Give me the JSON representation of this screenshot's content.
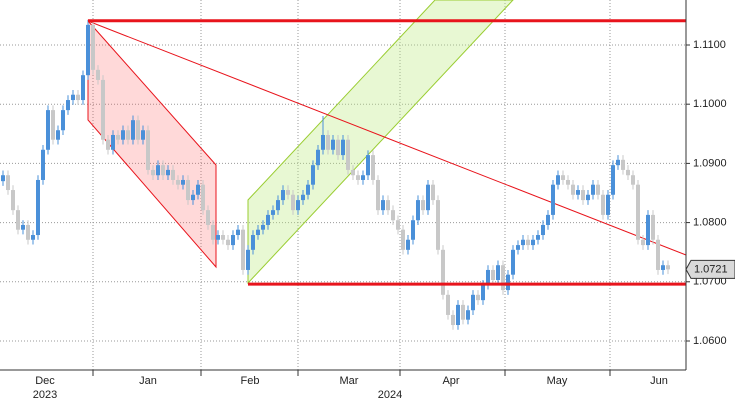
{
  "chart_data": {
    "type": "candlestick",
    "ylim": [
      1.0551,
      1.1176
    ],
    "yticks": [
      {
        "value": 1.06,
        "label": "1.0600"
      },
      {
        "value": 1.07,
        "label": "1.0700"
      },
      {
        "value": 1.08,
        "label": "1.0800"
      },
      {
        "value": 1.09,
        "label": "1.0900"
      },
      {
        "value": 1.1,
        "label": "1.1000"
      },
      {
        "value": 1.11,
        "label": "1.1100"
      }
    ],
    "x_tick_labels": [
      "Dec",
      "Jan",
      "Feb",
      "Mar",
      "Apr",
      "May",
      "Jun"
    ],
    "year_labels": [
      "2023",
      "2024"
    ],
    "grid": true,
    "up_color": "#4a90d9",
    "down_color": "#c8c8c8",
    "horizontal_levels": [
      1.1141,
      1.0696
    ],
    "level_color": "#e8141c",
    "last_price": 1.0721,
    "open": [
      1.087,
      1.088,
      1.0855,
      1.0821,
      1.0788,
      1.0796,
      1.0771,
      1.0779,
      1.0872,
      1.0923,
      1.099,
      1.094,
      1.0956,
      1.099,
      1.1007,
      1.1016,
      1.1007,
      1.1049,
      1.1134,
      1.1058,
      1.1041,
      1.094,
      1.0923,
      1.0948,
      1.094,
      1.0956,
      1.094,
      1.0973,
      1.094,
      1.0956,
      1.0889,
      1.088,
      1.0897,
      1.088,
      1.0889,
      1.0872,
      1.0864,
      1.0872,
      1.0838,
      1.0847,
      1.0864,
      1.0821,
      1.0796,
      1.0771,
      1.0779,
      1.0771,
      1.0762,
      1.0779,
      1.0788,
      1.072,
      1.0754,
      1.0779,
      1.0788,
      1.0796,
      1.0813,
      1.0821,
      1.0838,
      1.0855,
      1.0847,
      1.0821,
      1.0838,
      1.0847,
      1.0864,
      1.0897,
      1.0923,
      1.0948,
      1.0923,
      1.094,
      1.0914,
      1.094,
      1.0889,
      1.088,
      1.0872,
      1.088,
      1.0914,
      1.0872,
      1.0821,
      1.0838,
      1.0821,
      1.0804,
      1.0788,
      1.0754,
      1.0771,
      1.0804,
      1.0838,
      1.0821,
      1.0864,
      1.0838,
      1.0754,
      1.0678,
      1.0644,
      1.0627,
      1.0661,
      1.0636,
      1.0652,
      1.0678,
      1.0669,
      1.0695,
      1.072,
      1.0703,
      1.0728,
      1.0686,
      1.0712,
      1.0754,
      1.0762,
      1.0771,
      1.0762,
      1.0771,
      1.0779,
      1.0796,
      1.0813,
      1.0864,
      1.088,
      1.0872,
      1.0864,
      1.0847,
      1.0855,
      1.0838,
      1.0847,
      1.0864,
      1.0847,
      1.0813,
      1.0847,
      1.0897,
      1.0906,
      1.0889,
      1.088,
      1.0864,
      1.0771,
      1.0762,
      1.0813,
      1.0771,
      1.072,
      1.0728
    ],
    "high": [
      1.0888,
      1.0888,
      1.0863,
      1.0829,
      1.0804,
      1.0804,
      1.0787,
      1.088,
      1.0931,
      1.0998,
      1.0998,
      1.0964,
      1.0998,
      1.1015,
      1.1024,
      1.1024,
      1.1057,
      1.1142,
      1.1142,
      1.1066,
      1.1049,
      1.0948,
      1.0956,
      1.0956,
      1.0964,
      1.0964,
      1.0981,
      1.0981,
      1.0964,
      1.0964,
      1.0897,
      1.0905,
      1.0905,
      1.0897,
      1.0897,
      1.088,
      1.088,
      1.088,
      1.0855,
      1.0872,
      1.0872,
      1.0829,
      1.0804,
      1.0787,
      1.0787,
      1.0779,
      1.0787,
      1.0796,
      1.0796,
      1.0762,
      1.0787,
      1.0796,
      1.0804,
      1.0821,
      1.0829,
      1.0846,
      1.0863,
      1.0863,
      1.0855,
      1.0846,
      1.0855,
      1.0872,
      1.0905,
      1.0931,
      1.098,
      1.0956,
      1.0948,
      1.0948,
      1.0948,
      1.0948,
      1.0897,
      1.0888,
      1.0888,
      1.0922,
      1.0922,
      1.088,
      1.0846,
      1.0846,
      1.0829,
      1.0812,
      1.0796,
      1.0779,
      1.0812,
      1.0846,
      1.0846,
      1.0872,
      1.0872,
      1.0846,
      1.0762,
      1.0686,
      1.0652,
      1.0669,
      1.0669,
      1.066,
      1.0686,
      1.0686,
      1.0703,
      1.0728,
      1.0728,
      1.0736,
      1.0736,
      1.072,
      1.0762,
      1.077,
      1.0779,
      1.0779,
      1.0779,
      1.0787,
      1.0804,
      1.0821,
      1.0872,
      1.0888,
      1.0888,
      1.088,
      1.0872,
      1.0863,
      1.0863,
      1.0855,
      1.0872,
      1.0872,
      1.0855,
      1.0855,
      1.0905,
      1.0914,
      1.0914,
      1.0897,
      1.0888,
      1.0872,
      1.0779,
      1.0821,
      1.0821,
      1.0779,
      1.0736,
      1.0736
    ],
    "low": [
      1.0862,
      1.0847,
      1.0813,
      1.078,
      1.078,
      1.0763,
      1.0763,
      1.0771,
      1.0864,
      1.0915,
      1.0932,
      1.0932,
      1.0948,
      1.0982,
      1.0999,
      1.0999,
      1.0999,
      1.1041,
      1.105,
      1.1033,
      1.0932,
      1.0915,
      1.0915,
      1.0932,
      1.0932,
      1.0932,
      1.0932,
      1.0932,
      1.0932,
      1.0881,
      1.0872,
      1.0872,
      1.0872,
      1.0872,
      1.0864,
      1.0856,
      1.0856,
      1.083,
      1.083,
      1.0839,
      1.0813,
      1.0788,
      1.0763,
      1.0763,
      1.0763,
      1.0754,
      1.0754,
      1.0771,
      1.0712,
      1.0712,
      1.0746,
      1.0771,
      1.078,
      1.0788,
      1.0805,
      1.0813,
      1.083,
      1.0839,
      1.0813,
      1.0813,
      1.083,
      1.0839,
      1.0856,
      1.0889,
      1.0915,
      1.0915,
      1.0915,
      1.0906,
      1.0906,
      1.0881,
      1.0872,
      1.0864,
      1.0864,
      1.0872,
      1.0864,
      1.0813,
      1.0813,
      1.0813,
      1.0796,
      1.078,
      1.0746,
      1.0746,
      1.0763,
      1.0796,
      1.0813,
      1.0813,
      1.083,
      1.0746,
      1.067,
      1.0636,
      1.0619,
      1.0619,
      1.0628,
      1.0628,
      1.0644,
      1.0661,
      1.0661,
      1.0687,
      1.0695,
      1.0695,
      1.0678,
      1.0678,
      1.0704,
      1.0746,
      1.0754,
      1.0754,
      1.0754,
      1.0763,
      1.0771,
      1.0788,
      1.0805,
      1.0856,
      1.0864,
      1.0856,
      1.0839,
      1.0839,
      1.083,
      1.083,
      1.0839,
      1.0839,
      1.0805,
      1.0805,
      1.0839,
      1.0889,
      1.0881,
      1.0872,
      1.0856,
      1.0763,
      1.0754,
      1.0754,
      1.0763,
      1.0712,
      1.0712,
      1.0713
    ],
    "close": [
      1.088,
      1.0855,
      1.0821,
      1.0788,
      1.0796,
      1.0771,
      1.0779,
      1.0872,
      1.0923,
      1.099,
      1.094,
      1.0956,
      1.099,
      1.1007,
      1.1016,
      1.1007,
      1.1049,
      1.1134,
      1.1058,
      1.1041,
      1.094,
      1.0923,
      1.0948,
      1.094,
      1.0956,
      1.094,
      1.0973,
      1.094,
      1.0956,
      1.0889,
      1.088,
      1.0897,
      1.088,
      1.0889,
      1.0872,
      1.0864,
      1.0872,
      1.0838,
      1.0847,
      1.0864,
      1.0821,
      1.0796,
      1.0771,
      1.0779,
      1.0771,
      1.0762,
      1.0779,
      1.0788,
      1.072,
      1.0754,
      1.0779,
      1.0788,
      1.0796,
      1.0813,
      1.0821,
      1.0838,
      1.0855,
      1.0847,
      1.0821,
      1.0838,
      1.0847,
      1.0864,
      1.0897,
      1.0923,
      1.0948,
      1.0923,
      1.094,
      1.0914,
      1.094,
      1.0889,
      1.088,
      1.0872,
      1.088,
      1.0914,
      1.0872,
      1.0821,
      1.0838,
      1.0821,
      1.0804,
      1.0788,
      1.0754,
      1.0771,
      1.0804,
      1.0838,
      1.0821,
      1.0864,
      1.0838,
      1.0754,
      1.0678,
      1.0644,
      1.0627,
      1.0661,
      1.0636,
      1.0652,
      1.0678,
      1.0669,
      1.0695,
      1.072,
      1.0703,
      1.0728,
      1.0686,
      1.0712,
      1.0754,
      1.0762,
      1.0771,
      1.0762,
      1.0771,
      1.0779,
      1.0796,
      1.0813,
      1.0864,
      1.088,
      1.0872,
      1.0864,
      1.0847,
      1.0855,
      1.0838,
      1.0847,
      1.0864,
      1.0847,
      1.0813,
      1.0847,
      1.0897,
      1.0906,
      1.0889,
      1.088,
      1.0864,
      1.0771,
      1.0762,
      1.0813,
      1.0771,
      1.072,
      1.0728,
      1.0721
    ]
  }
}
